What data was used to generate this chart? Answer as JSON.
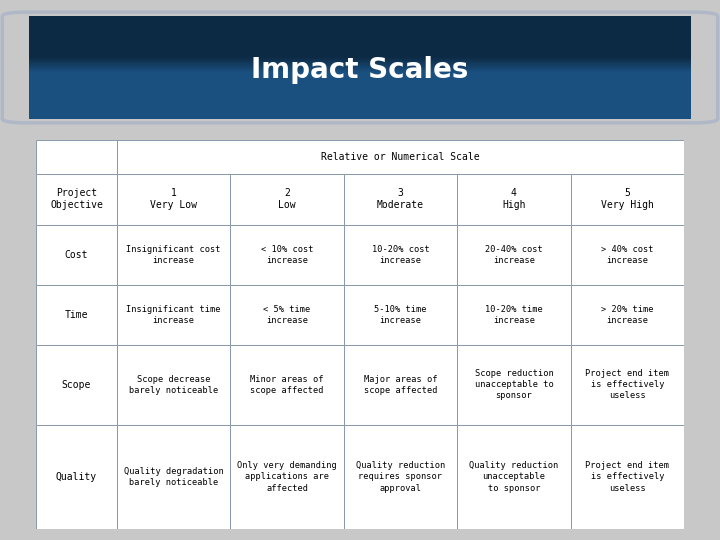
{
  "title": "Impact Scales",
  "title_text_color": "#ffffff",
  "header_row": "Relative or Numerical Scale",
  "col_headers": [
    "Project\nObjective",
    "1\nVery Low",
    "2\nLow",
    "3\nModerate",
    "4\nHigh",
    "5\nVery High"
  ],
  "rows": [
    {
      "label": "Cost",
      "cells": [
        "Insignificant cost\nincrease",
        "< 10% cost\nincrease",
        "10-20% cost\nincrease",
        "20-40% cost\nincrease",
        "> 40% cost\nincrease"
      ]
    },
    {
      "label": "Time",
      "cells": [
        "Insignificant time\nincrease",
        "< 5% time\nincrease",
        "5-10% time\nincrease",
        "10-20% time\nincrease",
        "> 20% time\nincrease"
      ]
    },
    {
      "label": "Scope",
      "cells": [
        "Scope decrease\nbarely noticeable",
        "Minor areas of\nscope affected",
        "Major areas of\nscope affected",
        "Scope reduction\nunacceptable to\nsponsor",
        "Project end item\nis effectively\nuseless"
      ]
    },
    {
      "label": "Quality",
      "cells": [
        "Quality degradation\nbarely noticeable",
        "Only very demanding\napplications are\naffected",
        "Quality reduction\nrequires sponsor\napproval",
        "Quality reduction\nunacceptable\nto sponsor",
        "Project end item\nis effectively\nuseless"
      ]
    }
  ],
  "fig_bg": "#c8c8c8",
  "table_outer_border": "#7799bb",
  "table_inner_border": "#8899aa",
  "title_color_top": "#0d2a45",
  "title_color_bottom": "#1a5080",
  "title_color_mid": "#1e4878"
}
